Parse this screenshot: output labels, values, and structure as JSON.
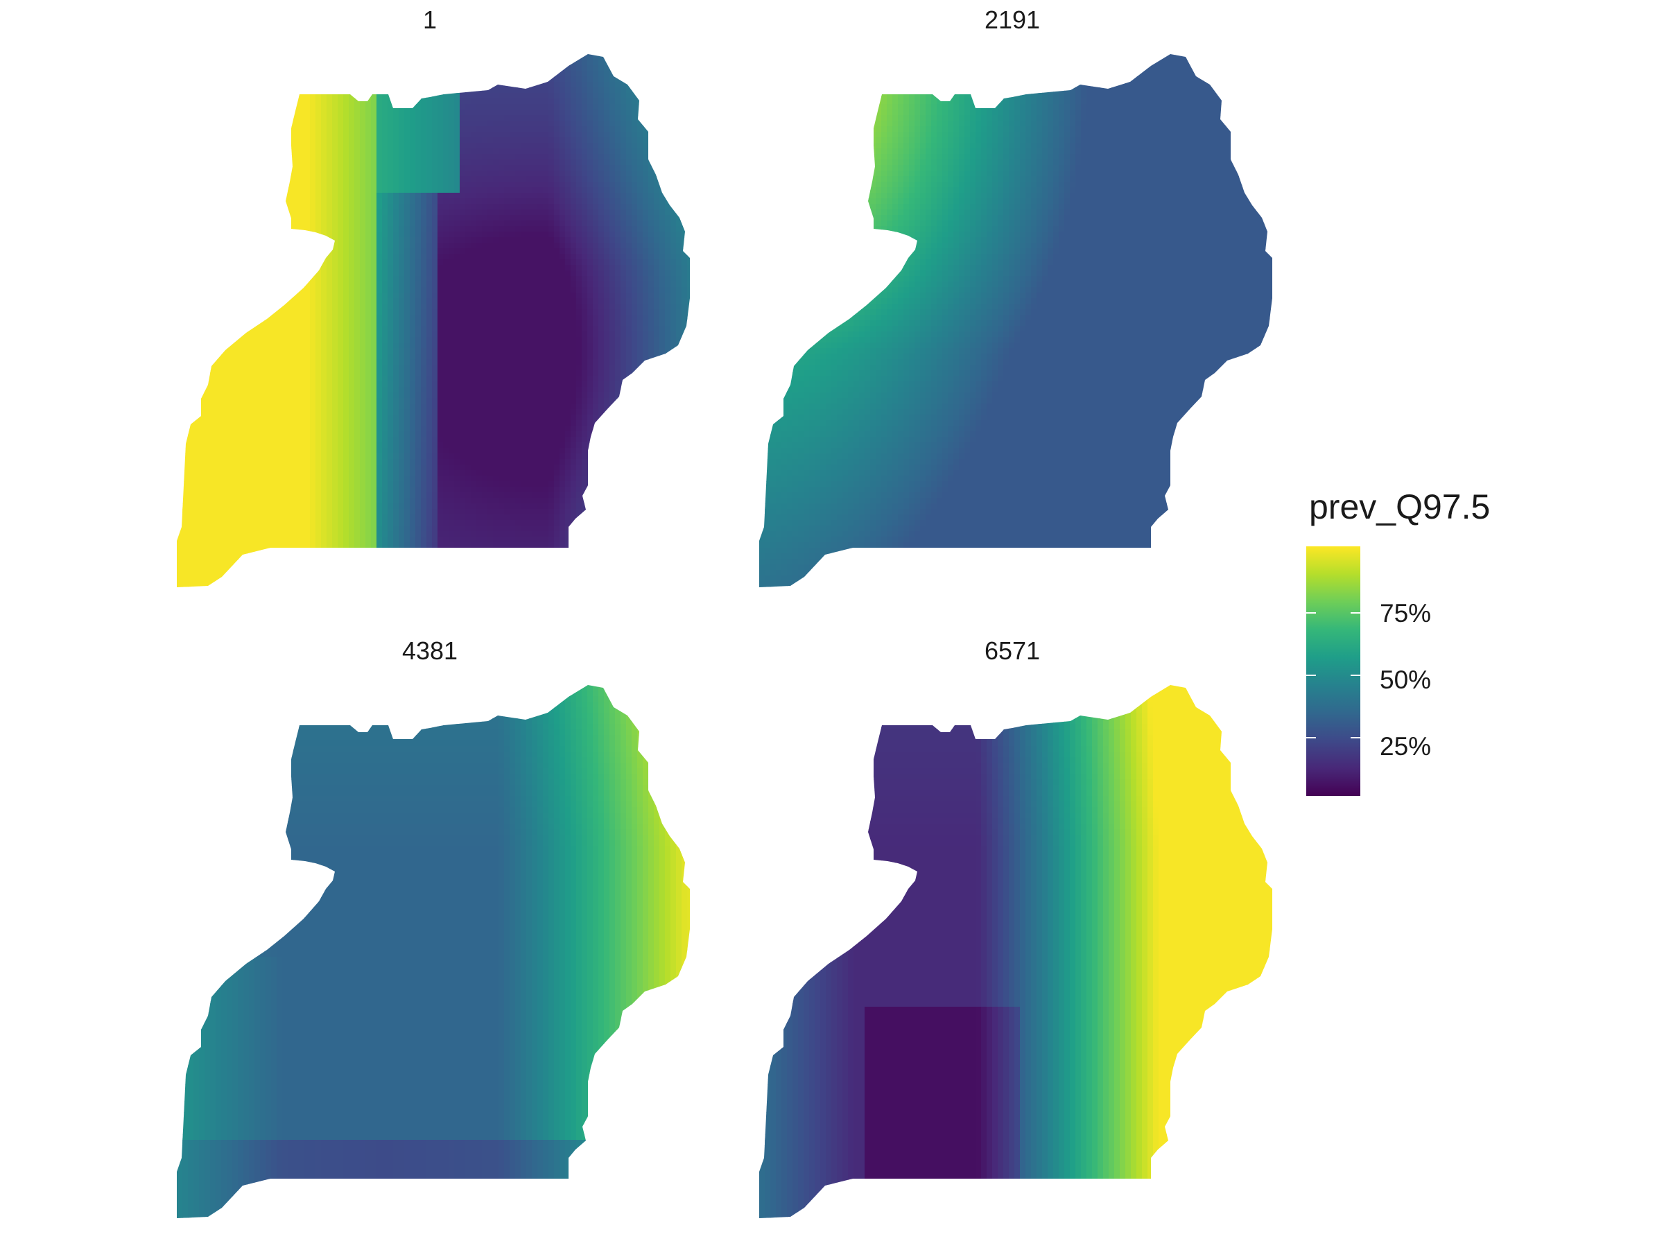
{
  "chart_data": {
    "type": "heatmap",
    "description_note": "",
    "panels": [
      {
        "title": "1",
        "pattern": "west_high_east_low"
      },
      {
        "title": "2191",
        "pattern": "northwest_high_rest_mid"
      },
      {
        "title": "4381",
        "pattern": "east_high_center_mid"
      },
      {
        "title": "6571",
        "pattern": "east_high_center_low"
      }
    ],
    "legend": {
      "title": "prev_Q97.5",
      "breaks": [
        {
          "value": 0.75,
          "label": "75%"
        },
        {
          "value": 0.5,
          "label": "50%"
        },
        {
          "value": 0.25,
          "label": "25%"
        }
      ],
      "limits": [
        0.0,
        1.0
      ],
      "palette": "viridis",
      "position": "right"
    }
  },
  "colors": {
    "viridis": [
      "#440154",
      "#482878",
      "#3e4989",
      "#31688e",
      "#26828e",
      "#1f9e89",
      "#35b779",
      "#6ece58",
      "#b5de2b",
      "#fde725"
    ]
  }
}
